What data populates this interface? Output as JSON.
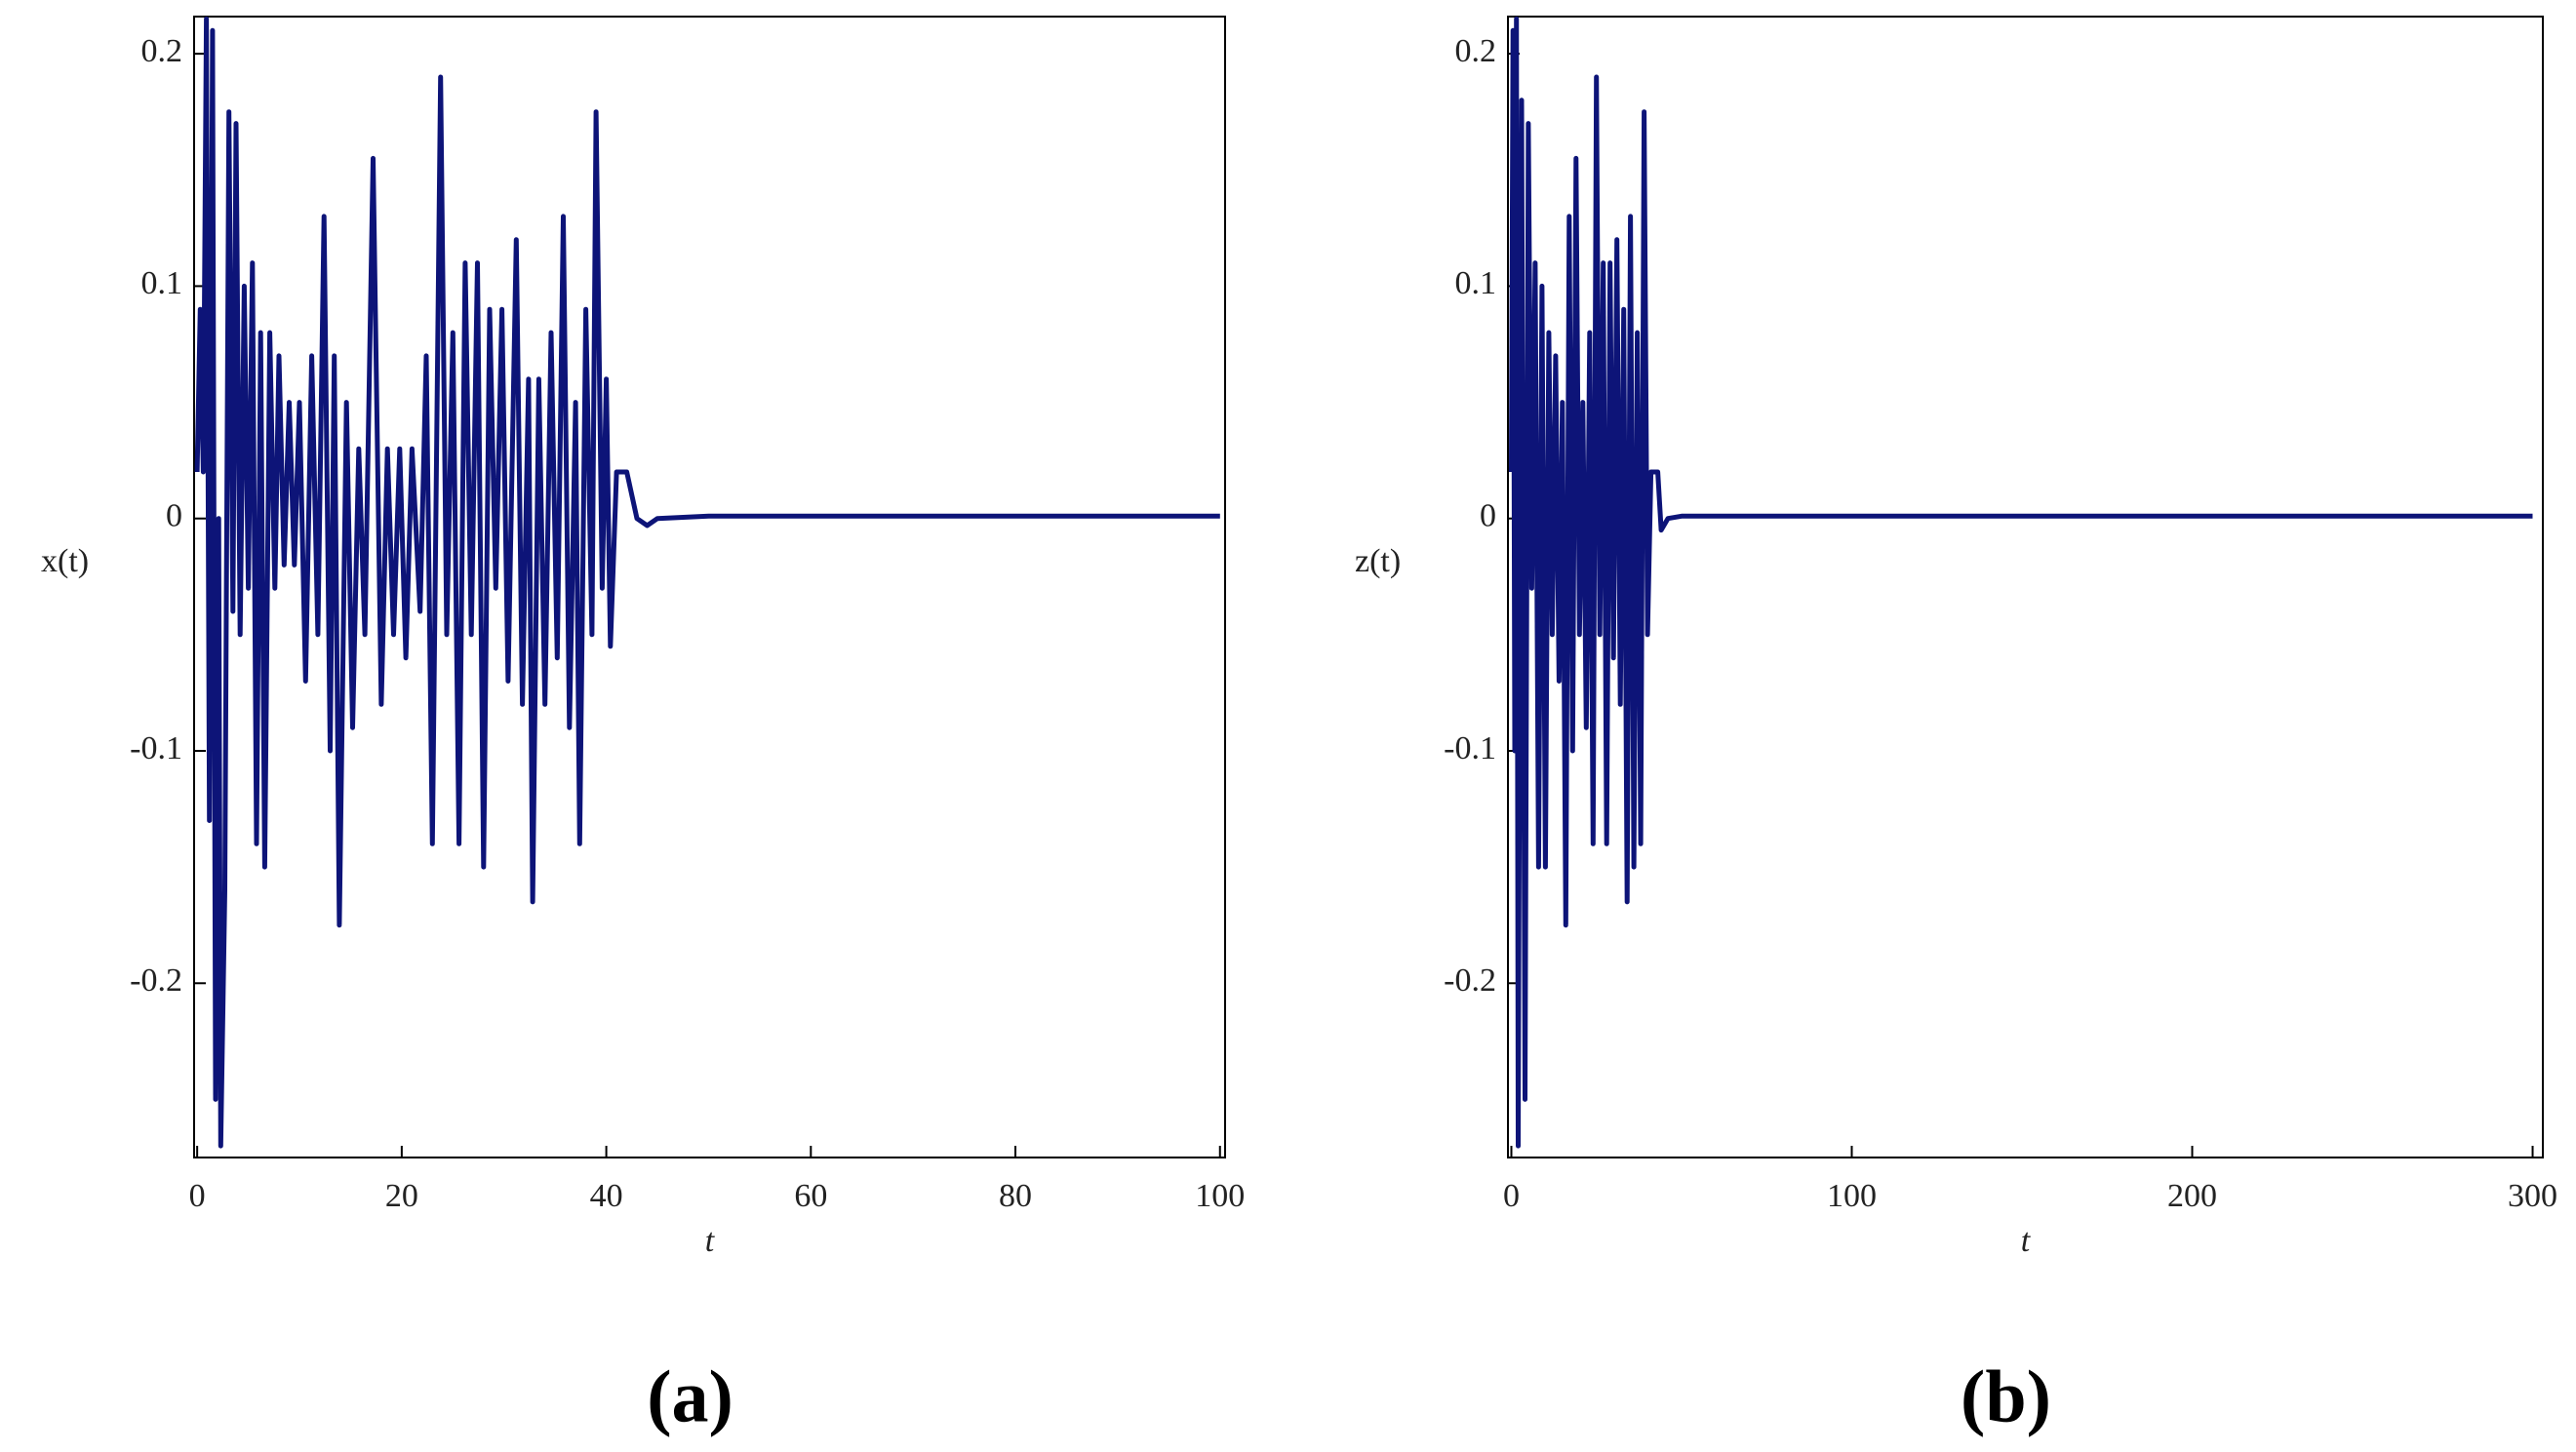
{
  "chart_data": [
    {
      "type": "line",
      "ylabel": "x(t)",
      "xlabel": "t",
      "caption": "(a)",
      "xlim": [
        -0.3,
        100.5
      ],
      "ylim": [
        -0.275,
        0.216
      ],
      "xticks": [
        0,
        20,
        40,
        60,
        80,
        100
      ],
      "yticks": [
        -0.2,
        -0.1,
        0,
        0.1,
        0.2
      ],
      "series": [
        {
          "color": "#0d1478",
          "x": [
            0,
            0.3,
            0.6,
            0.9,
            1.2,
            1.5,
            1.8,
            2.1,
            2.3,
            2.7,
            3.1,
            3.5,
            3.8,
            4.2,
            4.6,
            5.0,
            5.4,
            5.8,
            6.2,
            6.6,
            7.1,
            7.6,
            8.0,
            8.5,
            9.0,
            9.5,
            10.0,
            10.6,
            11.2,
            11.8,
            12.4,
            13.0,
            13.4,
            13.9,
            14.6,
            15.2,
            15.8,
            16.4,
            17.2,
            18.0,
            18.6,
            19.2,
            19.8,
            20.4,
            21.0,
            21.8,
            22.4,
            23.0,
            23.8,
            24.4,
            25.0,
            25.6,
            26.2,
            26.8,
            27.4,
            28.0,
            28.6,
            29.2,
            29.8,
            30.4,
            31.2,
            31.8,
            32.4,
            32.8,
            33.4,
            34.0,
            34.6,
            35.2,
            35.8,
            36.4,
            37.0,
            37.4,
            38.0,
            38.6,
            39.0,
            39.6,
            40.0,
            40.4,
            41.0,
            42.0,
            43.0,
            44.0,
            45.0,
            50,
            100
          ],
          "values": [
            0.02,
            0.09,
            0.02,
            0.215,
            -0.13,
            0.21,
            -0.25,
            0.0,
            -0.27,
            -0.16,
            0.175,
            -0.04,
            0.17,
            -0.05,
            0.1,
            -0.03,
            0.11,
            -0.14,
            0.08,
            -0.15,
            0.08,
            -0.03,
            0.07,
            -0.02,
            0.05,
            -0.02,
            0.05,
            -0.07,
            0.07,
            -0.05,
            0.13,
            -0.1,
            0.07,
            -0.175,
            0.05,
            -0.09,
            0.03,
            -0.05,
            0.155,
            -0.08,
            0.03,
            -0.05,
            0.03,
            -0.06,
            0.03,
            -0.04,
            0.07,
            -0.14,
            0.19,
            -0.05,
            0.08,
            -0.14,
            0.11,
            -0.05,
            0.11,
            -0.15,
            0.09,
            -0.03,
            0.09,
            -0.07,
            0.12,
            -0.08,
            0.06,
            -0.165,
            0.06,
            -0.08,
            0.08,
            -0.06,
            0.13,
            -0.09,
            0.05,
            -0.14,
            0.09,
            -0.05,
            0.175,
            -0.03,
            0.06,
            -0.055,
            0.02,
            0.02,
            0.0,
            -0.003,
            0.0,
            0.001,
            0.001
          ]
        }
      ]
    },
    {
      "type": "line",
      "ylabel": "z(t)",
      "xlabel": "t",
      "caption": "(b)",
      "xlim": [
        -1,
        303
      ],
      "ylim": [
        -0.275,
        0.216
      ],
      "xticks": [
        0,
        100,
        200,
        300
      ],
      "yticks": [
        -0.2,
        -0.1,
        0,
        0.1,
        0.2
      ],
      "series": [
        {
          "color": "#0d1478",
          "x": [
            0,
            0.5,
            1,
            1.5,
            2,
            3,
            4,
            5,
            6,
            7,
            8,
            9,
            10,
            11,
            12,
            13,
            14,
            15,
            16,
            17,
            18,
            19,
            20,
            21,
            22,
            23,
            24,
            25,
            26,
            27,
            28,
            29,
            30,
            31,
            32,
            33,
            34,
            35,
            36,
            37,
            38,
            39,
            40,
            41,
            43,
            44,
            46,
            50,
            300
          ],
          "values": [
            0.02,
            0.21,
            -0.1,
            0.215,
            -0.27,
            0.18,
            -0.25,
            0.17,
            -0.03,
            0.11,
            -0.15,
            0.1,
            -0.15,
            0.08,
            -0.05,
            0.07,
            -0.07,
            0.05,
            -0.175,
            0.13,
            -0.1,
            0.155,
            -0.05,
            0.05,
            -0.09,
            0.08,
            -0.14,
            0.19,
            -0.05,
            0.11,
            -0.14,
            0.11,
            -0.06,
            0.12,
            -0.08,
            0.09,
            -0.165,
            0.13,
            -0.15,
            0.08,
            -0.14,
            0.175,
            -0.05,
            0.02,
            0.02,
            -0.005,
            0.0,
            0.001,
            0.001
          ]
        }
      ]
    }
  ]
}
